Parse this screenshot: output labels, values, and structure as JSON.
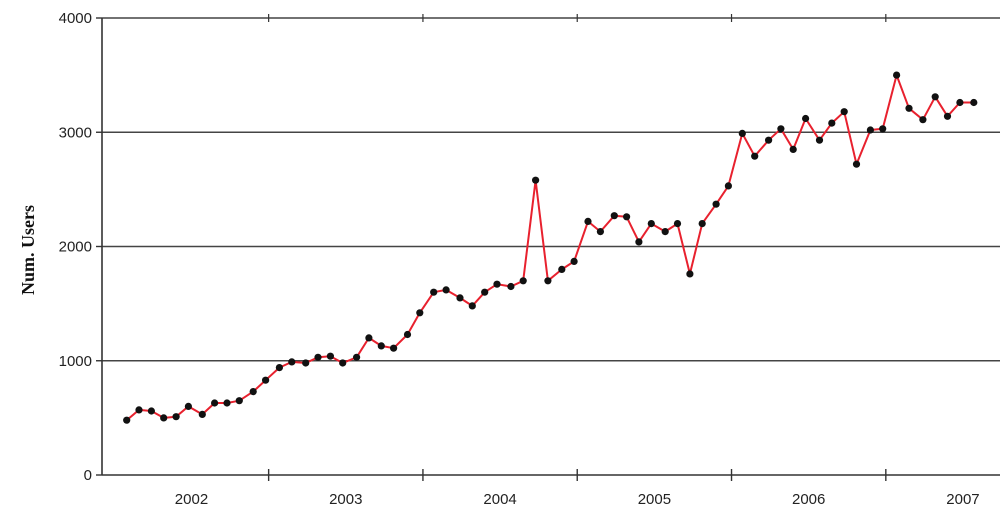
{
  "chart_data": {
    "type": "line",
    "title": "",
    "xlabel": "",
    "ylabel": "Num. Users",
    "ylim": [
      0,
      4000
    ],
    "yticks": [
      0,
      1000,
      2000,
      3000,
      4000
    ],
    "xlim": [
      2001.42,
      2007.24
    ],
    "xticks": [
      {
        "label": "2002",
        "value": 2002
      },
      {
        "label": "2003",
        "value": 2003
      },
      {
        "label": "2004",
        "value": 2004
      },
      {
        "label": "2005",
        "value": 2005
      },
      {
        "label": "2006",
        "value": 2006
      },
      {
        "label": "2007",
        "value": 2007
      }
    ],
    "year_boundaries": [
      2002.5,
      2003.5,
      2004.5,
      2005.5,
      2006.5
    ],
    "grid": true,
    "colors": {
      "line": "#e8212e",
      "marker": "#111111",
      "gridline": "#444444",
      "axis": "#333333"
    },
    "series": [
      {
        "x": [
          2001.58,
          2001.66,
          2001.74,
          2001.82,
          2001.9,
          2001.98,
          2002.07,
          2002.15,
          2002.23,
          2002.31,
          2002.4,
          2002.48,
          2002.57,
          2002.65,
          2002.74,
          2002.82,
          2002.9,
          2002.98,
          2003.07,
          2003.15,
          2003.23,
          2003.31,
          2003.4,
          2003.48,
          2003.57,
          2003.65,
          2003.74,
          2003.82,
          2003.9,
          2003.98,
          2004.07,
          2004.15,
          2004.23,
          2004.31,
          2004.4,
          2004.48,
          2004.57,
          2004.65,
          2004.74,
          2004.82,
          2004.9,
          2004.98,
          2005.07,
          2005.15,
          2005.23,
          2005.31,
          2005.4,
          2005.48,
          2005.57,
          2005.65,
          2005.74,
          2005.82,
          2005.9,
          2005.98,
          2006.07,
          2006.15,
          2006.23,
          2006.31,
          2006.4,
          2006.48,
          2006.57,
          2006.65,
          2006.74,
          2006.82,
          2006.9,
          2006.98,
          2007.07
        ],
        "values": [
          480,
          570,
          560,
          500,
          510,
          600,
          530,
          630,
          630,
          650,
          730,
          830,
          940,
          990,
          980,
          1030,
          1040,
          980,
          1030,
          1200,
          1130,
          1110,
          1230,
          1420,
          1600,
          1620,
          1550,
          1480,
          1600,
          1670,
          1650,
          1700,
          2580,
          1700,
          1800,
          1870,
          2220,
          2130,
          2270,
          2260,
          2040,
          2200,
          2130,
          2200,
          1760,
          2200,
          2370,
          2530,
          2990,
          2790,
          2930,
          3030,
          2850,
          3120,
          2930,
          3080,
          3180,
          2720,
          3020,
          3030,
          3500,
          3210,
          3110,
          3310,
          3140,
          3260,
          3260
        ]
      }
    ]
  }
}
